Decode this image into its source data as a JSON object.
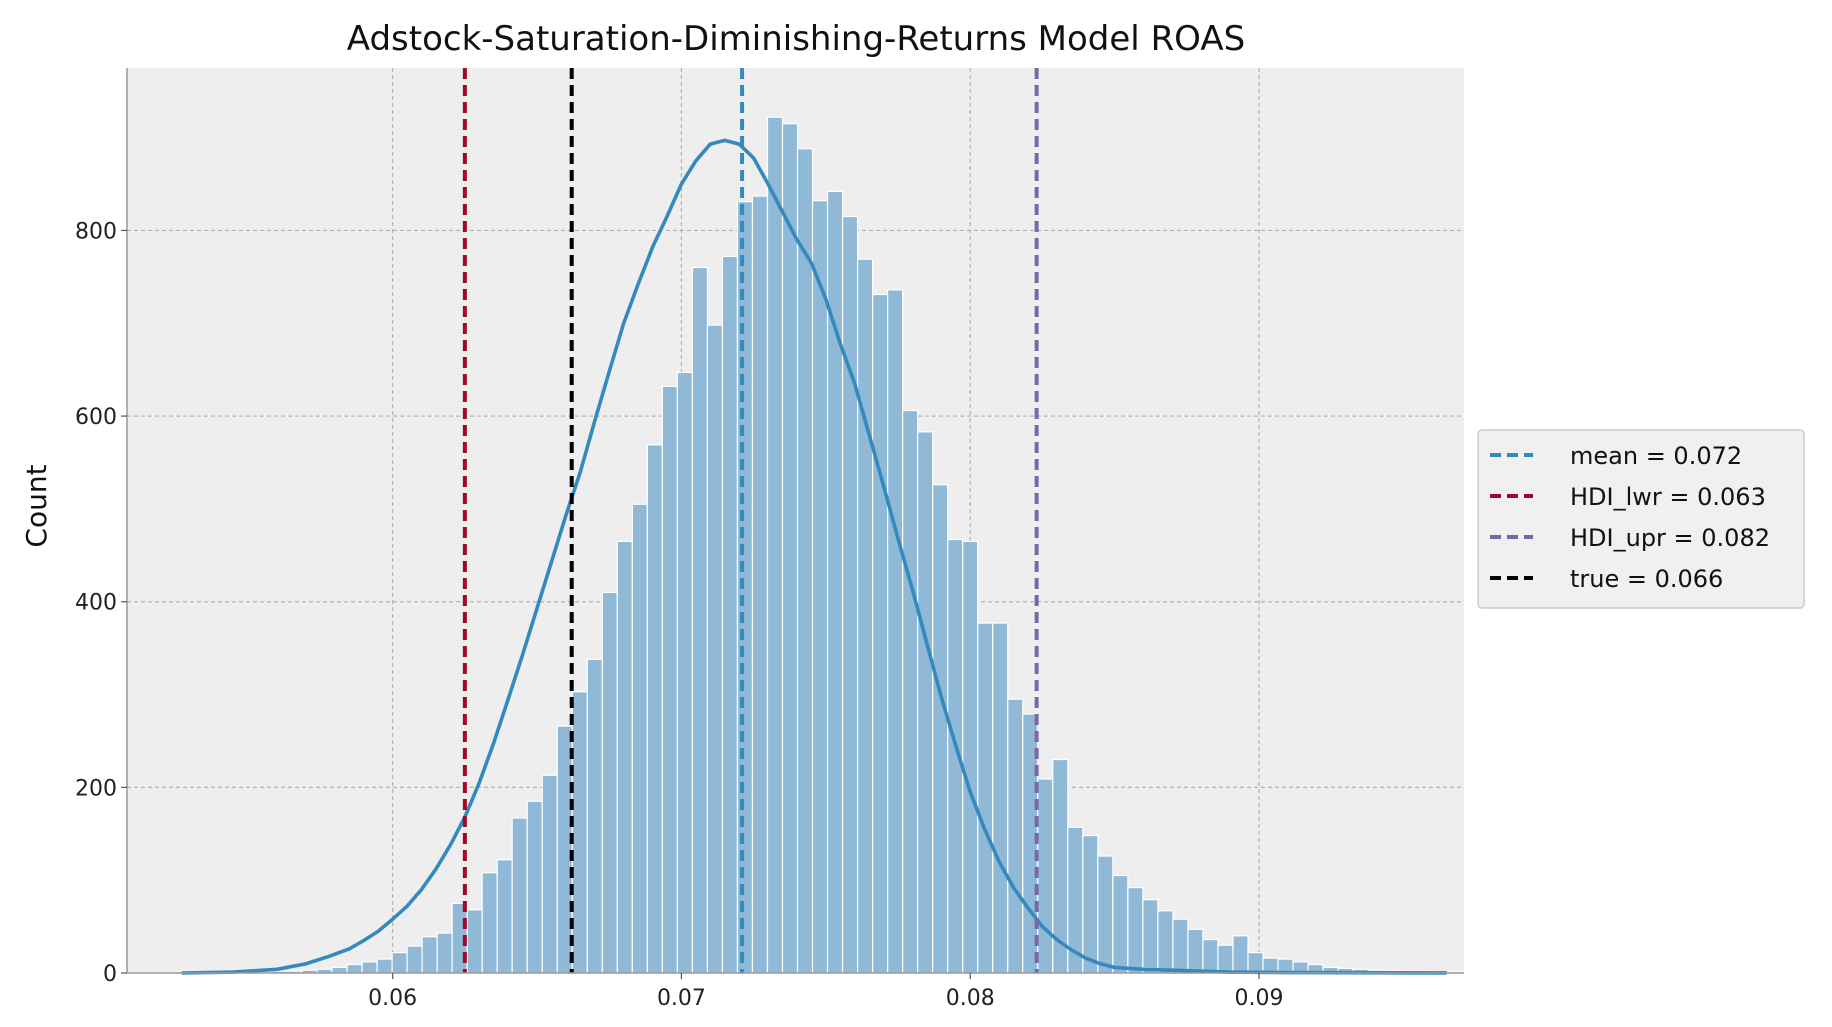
{
  "chart_data": {
    "type": "bar",
    "title": "Adstock-Saturation-Diminishing-Returns Model ROAS",
    "xlabel": "",
    "ylabel": "Count",
    "xlim": [
      0.0508,
      0.0971
    ],
    "ylim": [
      0,
      975
    ],
    "xticks": [
      0.06,
      0.07,
      0.08,
      0.09
    ],
    "xtick_labels": [
      "0.06",
      "0.07",
      "0.08",
      "0.09"
    ],
    "yticks": [
      0,
      200,
      400,
      600,
      800
    ],
    "ytick_labels": [
      "0",
      "200",
      "400",
      "600",
      "800"
    ],
    "grid": true,
    "legend_position": "center-right, outside plot",
    "histogram": {
      "bin_start": 0.0527,
      "bin_width": 0.00052,
      "color": "#8fb9d6",
      "counts": [
        1,
        1,
        1,
        1,
        1,
        1,
        2,
        2,
        3,
        4,
        6,
        9,
        12,
        15,
        22,
        29,
        39,
        43,
        75,
        68,
        108,
        122,
        167,
        185,
        213,
        266,
        303,
        338,
        410,
        465,
        505,
        569,
        632,
        647,
        760,
        698,
        772,
        831,
        837,
        922,
        915,
        888,
        832,
        842,
        815,
        769,
        731,
        736,
        606,
        583,
        526,
        467,
        465,
        377,
        377,
        295,
        279,
        209,
        230,
        157,
        148,
        126,
        105,
        92,
        79,
        67,
        58,
        47,
        36,
        30,
        40,
        22,
        16,
        15,
        12,
        9,
        6,
        5,
        4,
        3,
        2,
        2,
        1,
        1,
        1,
        1
      ]
    },
    "kde": {
      "color": "#348abd",
      "x": [
        0.0527,
        0.0545,
        0.056,
        0.057,
        0.0578,
        0.0585,
        0.059,
        0.0595,
        0.06,
        0.0605,
        0.061,
        0.0615,
        0.062,
        0.0625,
        0.063,
        0.0635,
        0.064,
        0.0645,
        0.065,
        0.0655,
        0.066,
        0.0665,
        0.067,
        0.0675,
        0.068,
        0.0685,
        0.069,
        0.0695,
        0.07,
        0.0705,
        0.071,
        0.0715,
        0.072,
        0.0725,
        0.073,
        0.0735,
        0.074,
        0.0745,
        0.075,
        0.0755,
        0.076,
        0.0765,
        0.077,
        0.0775,
        0.078,
        0.0785,
        0.079,
        0.0795,
        0.08,
        0.0805,
        0.081,
        0.0815,
        0.082,
        0.0825,
        0.083,
        0.0835,
        0.084,
        0.0845,
        0.085,
        0.086,
        0.087,
        0.088,
        0.089,
        0.091,
        0.093,
        0.0965
      ],
      "y": [
        0,
        1,
        4,
        10,
        18,
        26,
        35,
        45,
        58,
        72,
        90,
        112,
        138,
        168,
        205,
        248,
        295,
        343,
        393,
        443,
        493,
        540,
        595,
        648,
        700,
        742,
        782,
        815,
        850,
        875,
        893,
        897,
        893,
        878,
        850,
        820,
        790,
        765,
        726,
        678,
        635,
        580,
        525,
        468,
        413,
        355,
        297,
        245,
        195,
        155,
        120,
        92,
        70,
        50,
        36,
        25,
        16,
        10,
        6,
        4,
        3,
        2,
        1,
        0.5,
        0.3,
        0.1
      ]
    },
    "lines": [
      {
        "name": "mean",
        "label": "mean =  0.072",
        "x": 0.0721,
        "color": "#348abd"
      },
      {
        "name": "HDI_lwr",
        "label": "HDI_lwr =  0.063",
        "x": 0.0625,
        "color": "#a60628"
      },
      {
        "name": "HDI_upr",
        "label": "HDI_upr =  0.082",
        "x": 0.0823,
        "color": "#7a68a6"
      },
      {
        "name": "true",
        "label": "true =  0.066",
        "x": 0.0662,
        "color": "#000000"
      }
    ]
  }
}
